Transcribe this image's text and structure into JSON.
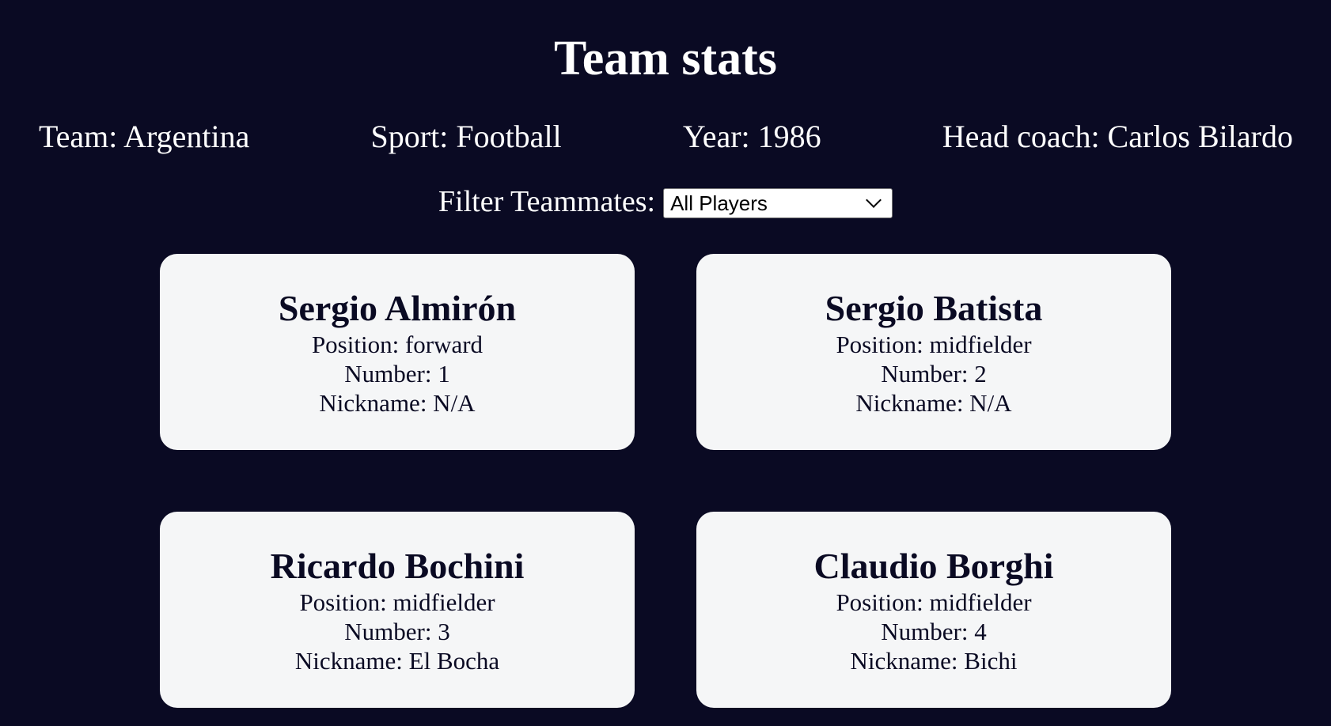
{
  "header": {
    "title": "Team stats"
  },
  "team_info": {
    "team": "Team: Argentina",
    "sport": "Sport: Football",
    "year": "Year: 1986",
    "head_coach": "Head coach: Carlos Bilardo"
  },
  "filter": {
    "label": "Filter Teammates:",
    "selected": "All Players"
  },
  "players": [
    {
      "name": "Sergio Almirón",
      "position": "Position: forward",
      "number": "Number: 1",
      "nickname": "Nickname: N/A"
    },
    {
      "name": "Sergio Batista",
      "position": "Position: midfielder",
      "number": "Number: 2",
      "nickname": "Nickname: N/A"
    },
    {
      "name": "Ricardo Bochini",
      "position": "Position: midfielder",
      "number": "Number: 3",
      "nickname": "Nickname: El Bocha"
    },
    {
      "name": "Claudio Borghi",
      "position": "Position: midfielder",
      "number": "Number: 4",
      "nickname": "Nickname: Bichi"
    }
  ],
  "colors": {
    "background": "#0a0a23",
    "card": "#f5f6f7",
    "text_light": "#ffffff",
    "text_dark": "#0a0a23"
  }
}
